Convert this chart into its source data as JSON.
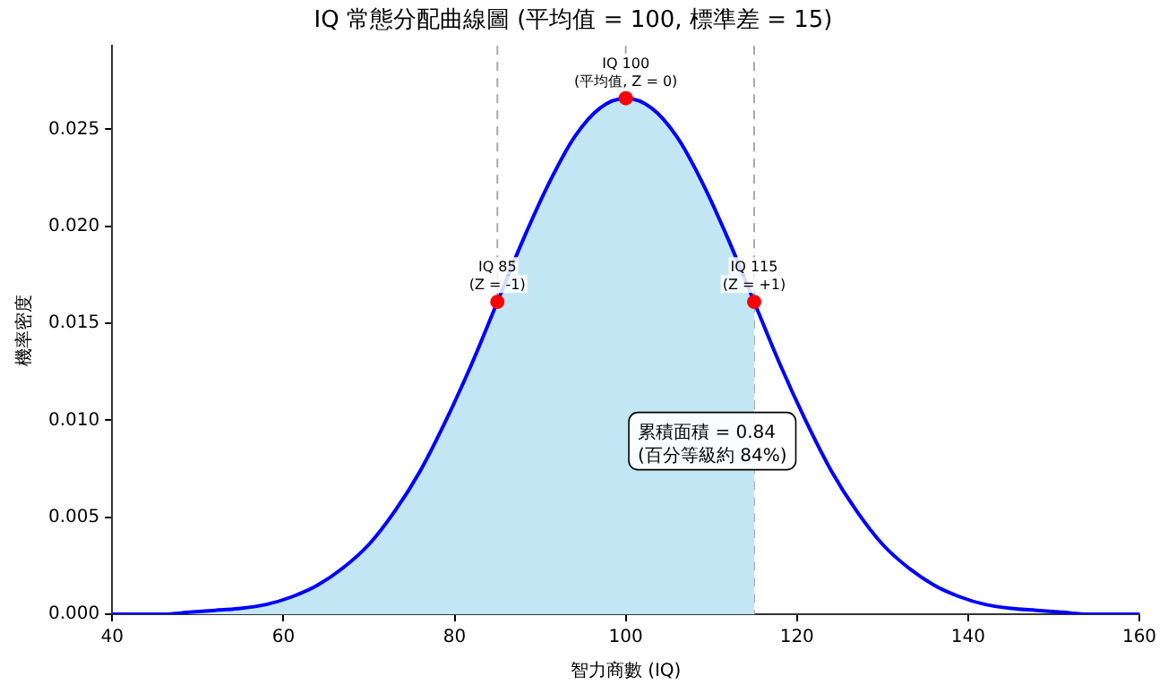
{
  "chart_data": {
    "type": "line",
    "title": "IQ 常態分配曲線圖 (平均值 = 100, 標準差 = 15)",
    "xlabel": "智力商數 (IQ)",
    "ylabel": "機率密度",
    "series": [
      {
        "type": "area",
        "color": "#c3e6f4",
        "x": [
          40,
          43,
          46,
          49,
          52,
          55,
          58,
          61,
          64,
          67,
          70,
          73,
          76,
          79,
          82,
          85,
          88,
          91,
          94,
          97,
          100,
          103,
          106,
          109,
          112,
          115
        ],
        "values": [
          0,
          0,
          0,
          0.0001,
          0.0002,
          0.0003,
          0.0005,
          0.0009,
          0.0015,
          0.0024,
          0.0036,
          0.0053,
          0.0074,
          0.01,
          0.0129,
          0.0161,
          0.0193,
          0.0222,
          0.0246,
          0.0261,
          0.0266,
          0.0261,
          0.0246,
          0.0222,
          0.0193,
          0.0161
        ]
      },
      {
        "color": "#0000ff",
        "marker": "none",
        "x": [
          40,
          43,
          46,
          49,
          52,
          55,
          58,
          61,
          64,
          67,
          70,
          73,
          76,
          79,
          82,
          85,
          88,
          91,
          94,
          97,
          100,
          103,
          106,
          109,
          112,
          115,
          118,
          121,
          124,
          127,
          130,
          133,
          136,
          139,
          142,
          145,
          148,
          151,
          154,
          157,
          160
        ],
        "values": [
          0,
          0,
          0,
          0.0001,
          0.0002,
          0.0003,
          0.0005,
          0.0009,
          0.0015,
          0.0024,
          0.0036,
          0.0053,
          0.0074,
          0.01,
          0.0129,
          0.0161,
          0.0193,
          0.0222,
          0.0246,
          0.0261,
          0.0266,
          0.0261,
          0.0246,
          0.0222,
          0.0193,
          0.0161,
          0.0129,
          0.01,
          0.0074,
          0.0053,
          0.0036,
          0.0024,
          0.0015,
          0.0009,
          0.0005,
          0.0003,
          0.0002,
          0.0001,
          0,
          0,
          0
        ]
      },
      {
        "type": "scatter",
        "color": "#ff0000",
        "marker": "circle",
        "x": [
          85,
          100,
          115
        ],
        "values": [
          0.0161,
          0.0266,
          0.0161
        ]
      }
    ],
    "xlim": [
      40,
      160
    ],
    "xticks": [
      40,
      60,
      80,
      100,
      120,
      140,
      160
    ],
    "ylim": [
      0,
      0.0293
    ],
    "yticks": [
      {
        "value": 0,
        "label": "0.000"
      },
      {
        "value": 0.005,
        "label": "0.005"
      },
      {
        "value": 0.01,
        "label": "0.010"
      },
      {
        "value": 0.015,
        "label": "0.015"
      },
      {
        "value": 0.02,
        "label": "0.020"
      },
      {
        "value": 0.025,
        "label": "0.025"
      }
    ],
    "ref_lines": [
      {
        "axis": "x",
        "value": 85,
        "color": "#a9a9a9",
        "line_style": "dashed"
      },
      {
        "axis": "x",
        "value": 100,
        "color": "#a9a9a9",
        "line_style": "dashed"
      },
      {
        "axis": "x",
        "value": 115,
        "color": "#a9a9a9",
        "line_style": "dashed"
      }
    ],
    "annotations": [
      {
        "text": "IQ 85\n(Z = -1)",
        "x": 85,
        "y": 0.0161
      },
      {
        "text": "IQ 100\n(平均值, Z = 0)",
        "x": 100,
        "y": 0.0266
      },
      {
        "text": "IQ 115\n(Z = +1)",
        "x": 115,
        "y": 0.0161
      },
      "累積面積 = 0.84\n(百分等級約 84%)"
    ],
    "grid": false,
    "legend": false,
    "line_style": "solid"
  }
}
